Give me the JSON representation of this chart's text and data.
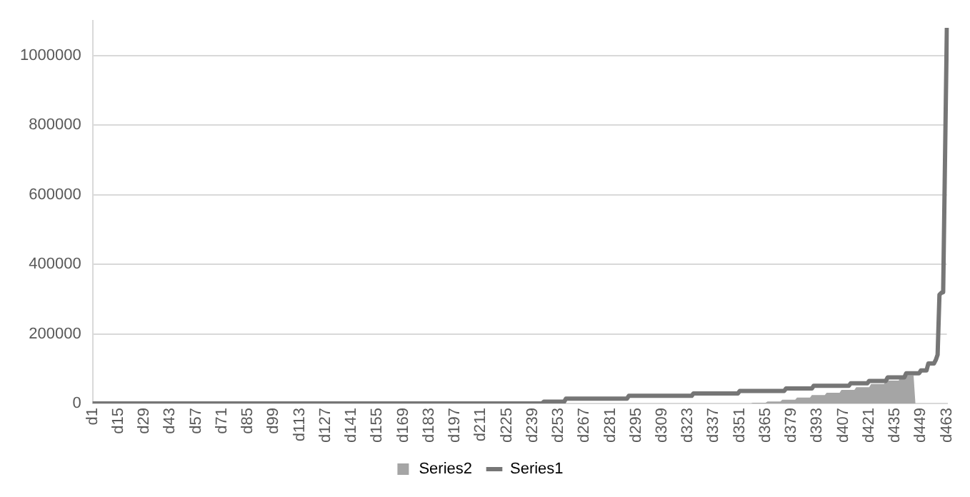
{
  "chart_data": {
    "type": "line",
    "categories": [
      "d1",
      null,
      null,
      null,
      null,
      null,
      null,
      null,
      null,
      null,
      null,
      null,
      null,
      null,
      "d15",
      null,
      null,
      null,
      null,
      null,
      null,
      null,
      null,
      null,
      null,
      null,
      null,
      null,
      "d29",
      null,
      null,
      null,
      null,
      null,
      null,
      null,
      null,
      null,
      null,
      null,
      null,
      null,
      "d43",
      null,
      null,
      null,
      null,
      null,
      null,
      null,
      null,
      null,
      null,
      null,
      null,
      null,
      "d57",
      null,
      null,
      null,
      null,
      null,
      null,
      null,
      null,
      null,
      null,
      null,
      null,
      null,
      "d71",
      null,
      null,
      null,
      null,
      null,
      null,
      null,
      null,
      null,
      null,
      null,
      null,
      null,
      "d85",
      null,
      null,
      null,
      null,
      null,
      null,
      null,
      null,
      null,
      null,
      null,
      null,
      null,
      "d99",
      null,
      null,
      null,
      null,
      null,
      null,
      null,
      null,
      null,
      null,
      null,
      null,
      null,
      "d113",
      null,
      null,
      null,
      null,
      null,
      null,
      null,
      null,
      null,
      null,
      null,
      null,
      null,
      "d127",
      null,
      null,
      null,
      null,
      null,
      null,
      null,
      null,
      null,
      null,
      null,
      null,
      null,
      "d141",
      null,
      null,
      null,
      null,
      null,
      null,
      null,
      null,
      null,
      null,
      null,
      null,
      null,
      "d155",
      null,
      null,
      null,
      null,
      null,
      null,
      null,
      null,
      null,
      null,
      null,
      null,
      null,
      "d169",
      null,
      null,
      null,
      null,
      null,
      null,
      null,
      null,
      null,
      null,
      null,
      null,
      null,
      "d183",
      null,
      null,
      null,
      null,
      null,
      null,
      null,
      null,
      null,
      null,
      null,
      null,
      null,
      "d197",
      null,
      null,
      null,
      null,
      null,
      null,
      null,
      null,
      null,
      null,
      null,
      null,
      null,
      "d211",
      null,
      null,
      null,
      null,
      null,
      null,
      null,
      null,
      null,
      null,
      null,
      null,
      null,
      "d225",
      null,
      null,
      null,
      null,
      null,
      null,
      null,
      null,
      null,
      null,
      null,
      null,
      null,
      "d239",
      null,
      null,
      null,
      null,
      null,
      null,
      null,
      null,
      null,
      null,
      null,
      null,
      null,
      "d253",
      null,
      null,
      null,
      null,
      null,
      null,
      null,
      null,
      null,
      null,
      null,
      null,
      null,
      "d267",
      null,
      null,
      null,
      null,
      null,
      null,
      null,
      null,
      null,
      null,
      null,
      null,
      null,
      "d281",
      null,
      null,
      null,
      null,
      null,
      null,
      null,
      null,
      null,
      null,
      null,
      null,
      null,
      "d295",
      null,
      null,
      null,
      null,
      null,
      null,
      null,
      null,
      null,
      null,
      null,
      null,
      null,
      "d309",
      null,
      null,
      null,
      null,
      null,
      null,
      null,
      null,
      null,
      null,
      null,
      null,
      null,
      "d323",
      null,
      null,
      null,
      null,
      null,
      null,
      null,
      null,
      null,
      null,
      null,
      null,
      null,
      "d337",
      null,
      null,
      null,
      null,
      null,
      null,
      null,
      null,
      null,
      null,
      null,
      null,
      null,
      "d351",
      null,
      null,
      null,
      null,
      null,
      null,
      null,
      null,
      null,
      null,
      null,
      null,
      null,
      "d365",
      null,
      null,
      null,
      null,
      null,
      null,
      null,
      null,
      null,
      null,
      null,
      null,
      null,
      "d379",
      null,
      null,
      null,
      null,
      null,
      null,
      null,
      null,
      null,
      null,
      null,
      null,
      null,
      "d393",
      null,
      null,
      null,
      null,
      null,
      null,
      null,
      null,
      null,
      null,
      null,
      null,
      null,
      "d407",
      null,
      null,
      null,
      null,
      null,
      null,
      null,
      null,
      null,
      null,
      null,
      null,
      null,
      "d421",
      null,
      null,
      null,
      null,
      null,
      null,
      null,
      null,
      null,
      null,
      null,
      null,
      null,
      "d435",
      null,
      null,
      null,
      null,
      null,
      null,
      null,
      null,
      null,
      null,
      null,
      null,
      null,
      "d449",
      null,
      null,
      null,
      null,
      null,
      null,
      null,
      null,
      null,
      null,
      null,
      null,
      null,
      "d463"
    ],
    "series": [
      {
        "name": "Series2",
        "type": "area",
        "color": "#a5a5a5",
        "values": [
          0,
          0,
          0,
          0,
          0,
          0,
          0,
          0,
          0,
          0,
          0,
          0,
          0,
          0,
          0,
          0,
          0,
          0,
          0,
          0,
          0,
          0,
          0,
          0,
          0,
          0,
          0,
          0,
          0,
          0,
          0,
          0,
          0,
          0,
          0,
          0,
          0,
          0,
          0,
          0,
          0,
          0,
          0,
          0,
          0,
          0,
          0,
          0,
          0,
          0,
          0,
          0,
          0,
          0,
          0,
          0,
          0,
          0,
          0,
          0,
          0,
          0,
          0,
          0,
          0,
          0,
          0,
          0,
          0,
          0,
          0,
          0,
          0,
          0,
          0,
          0,
          0,
          0,
          0,
          0,
          0,
          0,
          0,
          0,
          0,
          0,
          0,
          0,
          0,
          0,
          0,
          0,
          0,
          0,
          0,
          0,
          0,
          0,
          0,
          0,
          0,
          0,
          0,
          0,
          0,
          0,
          0,
          0,
          0,
          0,
          0,
          0,
          0,
          0,
          0,
          0,
          0,
          0,
          0,
          0,
          0,
          0,
          0,
          0,
          0,
          0,
          0,
          0,
          0,
          0,
          0,
          0,
          0,
          0,
          0,
          0,
          0,
          0,
          0,
          0,
          0,
          0,
          0,
          0,
          0,
          0,
          0,
          0,
          0,
          0,
          0,
          0,
          0,
          0,
          0,
          0,
          0,
          0,
          0,
          0,
          0,
          0,
          0,
          0,
          0,
          0,
          0,
          0,
          0,
          0,
          0,
          0,
          0,
          0,
          0,
          0,
          0,
          0,
          0,
          0,
          0,
          0,
          0,
          0,
          0,
          0,
          0,
          0,
          0,
          0,
          0,
          0,
          0,
          0,
          0,
          0,
          0,
          0,
          0,
          0,
          0,
          0,
          0,
          0,
          0,
          0,
          0,
          0,
          0,
          0,
          0,
          0,
          0,
          0,
          0,
          0,
          0,
          0,
          0,
          0,
          0,
          0,
          0,
          0,
          0,
          0,
          0,
          0,
          0,
          0,
          0,
          0,
          0,
          0,
          0,
          0,
          0,
          0,
          0,
          0,
          0,
          0,
          0,
          0,
          0,
          0,
          0,
          0,
          0,
          0,
          0,
          0,
          0,
          0,
          0,
          0,
          0,
          0,
          0,
          0,
          0,
          0,
          0,
          0,
          0,
          0,
          0,
          0,
          0,
          0,
          0,
          0,
          0,
          0,
          0,
          0,
          0,
          0,
          0,
          0,
          0,
          0,
          0,
          0,
          0,
          0,
          0,
          0,
          0,
          0,
          0,
          0,
          0,
          0,
          0,
          0,
          0,
          0,
          0,
          0,
          0,
          0,
          0,
          0,
          0,
          0,
          0,
          0,
          0,
          0,
          0,
          0,
          0,
          0,
          0,
          0,
          0,
          0,
          0,
          0,
          0,
          0,
          0,
          0,
          0,
          0,
          0,
          0,
          0,
          0,
          0,
          0,
          0,
          0,
          0,
          0,
          0,
          0,
          0,
          0,
          0,
          0,
          0,
          0,
          0,
          0,
          0,
          0,
          0,
          0,
          0,
          0,
          0,
          0,
          0,
          0,
          0,
          2000,
          2000,
          2000,
          2000,
          2000,
          2000,
          2000,
          2000,
          6000,
          6000,
          6000,
          6000,
          6000,
          6000,
          6000,
          6000,
          11000,
          11000,
          11000,
          11000,
          11000,
          11000,
          11000,
          11000,
          17000,
          17000,
          17000,
          17000,
          17000,
          17000,
          17000,
          17000,
          24000,
          24000,
          24000,
          24000,
          24000,
          24000,
          24000,
          24000,
          31000,
          31000,
          31000,
          31000,
          31000,
          31000,
          31000,
          31000,
          39000,
          39000,
          39000,
          39000,
          39000,
          39000,
          39000,
          39000,
          47000,
          47000,
          47000,
          47000,
          47000,
          47000,
          47000,
          47000,
          56000,
          56000,
          56000,
          56000,
          56000,
          56000,
          56000,
          56000,
          66000,
          66000,
          66000,
          66000,
          66000,
          66000,
          66000,
          66000,
          80000,
          80000,
          80000,
          80000,
          80000,
          80000,
          80000,
          80000,
          0,
          0,
          0,
          0,
          0,
          0,
          0,
          0,
          0,
          0,
          0,
          0,
          0,
          0,
          0,
          0,
          0,
          0
        ]
      },
      {
        "name": "Series1",
        "type": "line",
        "color": "#767676",
        "values": [
          0,
          0,
          0,
          0,
          0,
          0,
          0,
          0,
          0,
          0,
          0,
          0,
          0,
          0,
          0,
          0,
          0,
          0,
          0,
          0,
          0,
          0,
          0,
          0,
          0,
          0,
          0,
          0,
          0,
          0,
          0,
          0,
          0,
          0,
          0,
          0,
          0,
          0,
          0,
          0,
          0,
          0,
          0,
          0,
          0,
          0,
          0,
          0,
          0,
          0,
          0,
          0,
          0,
          0,
          0,
          0,
          0,
          0,
          0,
          0,
          0,
          0,
          0,
          0,
          0,
          0,
          0,
          0,
          0,
          0,
          0,
          0,
          0,
          0,
          0,
          0,
          0,
          0,
          0,
          0,
          0,
          0,
          0,
          0,
          0,
          0,
          0,
          0,
          0,
          0,
          0,
          0,
          0,
          0,
          0,
          0,
          0,
          0,
          0,
          0,
          0,
          0,
          0,
          0,
          0,
          0,
          0,
          0,
          0,
          0,
          0,
          0,
          0,
          0,
          0,
          0,
          0,
          0,
          0,
          0,
          0,
          0,
          0,
          0,
          0,
          0,
          0,
          0,
          0,
          0,
          0,
          0,
          0,
          0,
          0,
          0,
          0,
          0,
          0,
          0,
          0,
          0,
          0,
          0,
          0,
          0,
          0,
          0,
          0,
          0,
          0,
          0,
          0,
          0,
          0,
          0,
          0,
          0,
          0,
          0,
          0,
          0,
          0,
          0,
          0,
          0,
          0,
          0,
          0,
          0,
          0,
          0,
          0,
          0,
          0,
          0,
          0,
          0,
          0,
          0,
          0,
          0,
          0,
          0,
          0,
          0,
          0,
          0,
          0,
          0,
          0,
          0,
          0,
          0,
          0,
          0,
          0,
          0,
          0,
          0,
          0,
          0,
          0,
          0,
          0,
          0,
          0,
          0,
          0,
          0,
          0,
          0,
          0,
          0,
          0,
          0,
          0,
          0,
          0,
          0,
          0,
          0,
          0,
          0,
          0,
          0,
          0,
          0,
          0,
          0,
          0,
          0,
          0,
          0,
          0,
          0,
          0,
          0,
          0,
          0,
          0,
          0,
          0,
          0,
          5000,
          5000,
          5000,
          5000,
          5000,
          5000,
          5000,
          5000,
          5000,
          5000,
          5000,
          5000,
          14000,
          14000,
          14000,
          14000,
          14000,
          14000,
          14000,
          14000,
          14000,
          14000,
          14000,
          14000,
          14000,
          14000,
          14000,
          14000,
          14000,
          14000,
          14000,
          14000,
          14000,
          14000,
          14000,
          14000,
          14000,
          14000,
          14000,
          14000,
          14000,
          14000,
          14000,
          14000,
          14000,
          14000,
          22000,
          22000,
          22000,
          22000,
          22000,
          22000,
          22000,
          22000,
          22000,
          22000,
          22000,
          22000,
          22000,
          22000,
          22000,
          22000,
          22000,
          22000,
          22000,
          22000,
          22000,
          22000,
          22000,
          22000,
          22000,
          22000,
          22000,
          22000,
          22000,
          22000,
          22000,
          22000,
          22000,
          22000,
          22000,
          29000,
          29000,
          29000,
          29000,
          29000,
          29000,
          29000,
          29000,
          29000,
          29000,
          29000,
          29000,
          29000,
          29000,
          29000,
          29000,
          29000,
          29000,
          29000,
          29000,
          29000,
          29000,
          29000,
          29000,
          29000,
          36000,
          36000,
          36000,
          36000,
          36000,
          36000,
          36000,
          36000,
          36000,
          36000,
          36000,
          36000,
          36000,
          36000,
          36000,
          36000,
          36000,
          36000,
          36000,
          36000,
          36000,
          36000,
          36000,
          36000,
          36000,
          43000,
          43000,
          43000,
          43000,
          43000,
          43000,
          43000,
          43000,
          43000,
          43000,
          43000,
          43000,
          43000,
          43000,
          43000,
          51000,
          51000,
          51000,
          51000,
          51000,
          51000,
          51000,
          51000,
          51000,
          51000,
          51000,
          51000,
          51000,
          51000,
          51000,
          51000,
          51000,
          51000,
          51000,
          51000,
          58000,
          58000,
          58000,
          58000,
          58000,
          58000,
          58000,
          58000,
          58000,
          58000,
          65000,
          65000,
          65000,
          65000,
          65000,
          65000,
          65000,
          65000,
          65000,
          65000,
          75000,
          75000,
          75000,
          75000,
          75000,
          75000,
          75000,
          75000,
          75000,
          75000,
          87000,
          87000,
          87000,
          87000,
          87000,
          87000,
          87000,
          87000,
          95000,
          95000,
          95000,
          95000,
          115000,
          115000,
          115000,
          115000,
          125000,
          140000,
          313000,
          318000,
          320000,
          700000,
          1080000
        ]
      }
    ],
    "ylim": [
      0,
      1100000
    ],
    "yticks": [
      0,
      200000,
      400000,
      600000,
      800000,
      1000000
    ],
    "grid": "y",
    "legend": "bottom",
    "marker": "none"
  }
}
